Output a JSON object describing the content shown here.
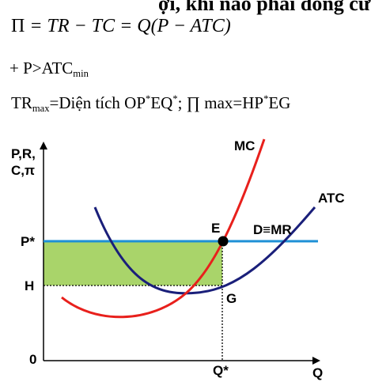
{
  "top_cut_text": "ợi, khi nào phải đóng cửa",
  "formula": {
    "profit_symbol": "Π",
    "rest": " = TR − TC = Q(P − ATC)"
  },
  "condition": {
    "prefix": "+ P>ATC",
    "sub": "min"
  },
  "maxima": {
    "tr": "TR",
    "tr_sub": "max",
    "text1": "=Diện tích OP",
    "sup1": "*",
    "text2": "EQ",
    "sup2": "*",
    "text3": "; ∏ max=HP",
    "sup3": "*",
    "text4": "EG"
  },
  "graph": {
    "y_axis_label_line1": "P,R,",
    "y_axis_label_line2": "C,π",
    "x_axis_label": "Q",
    "origin_label": "0",
    "price_label": "P*",
    "h_label": "H",
    "quantity_label": "Q*",
    "point_e": "E",
    "point_g": "G",
    "mc_label": "MC",
    "atc_label": "ATC",
    "demand_label": "D≡MR",
    "colors": {
      "mc": "#e8201c",
      "atc": "#1a1f7a",
      "demand": "#1e90d6",
      "profit_area": "#a9d46a",
      "point": "#000000"
    }
  }
}
